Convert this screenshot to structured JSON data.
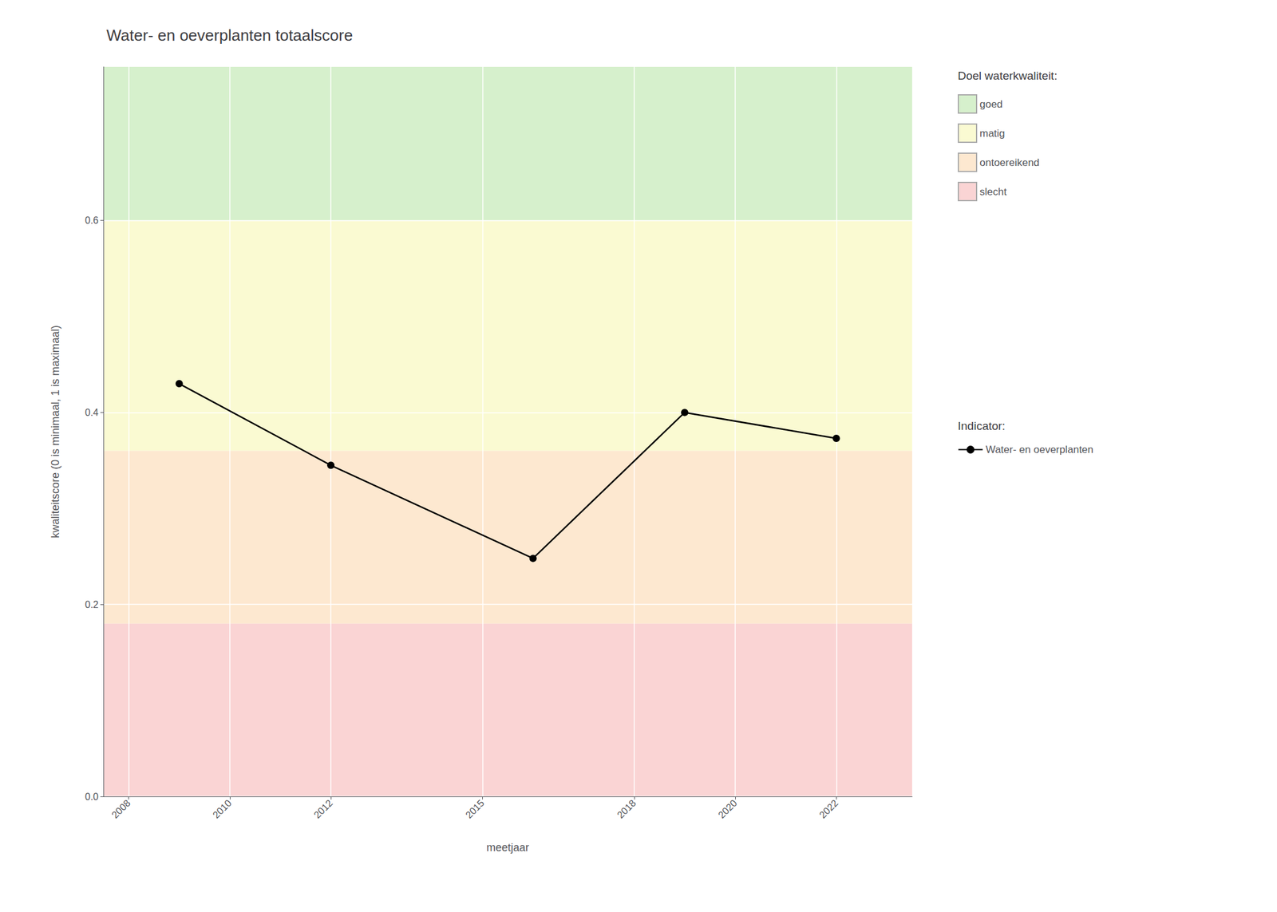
{
  "chart_data": {
    "type": "line",
    "title": "Water- en oeverplanten totaalscore",
    "xlabel": "meetjaar",
    "ylabel": "kwaliteitscore (0 is minimaal, 1 is maximaal)",
    "x": [
      2009,
      2012,
      2016,
      2019,
      2022
    ],
    "series": [
      {
        "name": "Water- en oeverplanten",
        "color": "#000000",
        "marker": "circle",
        "values": [
          0.43,
          0.345,
          0.248,
          0.4,
          0.373
        ]
      }
    ],
    "xlim": [
      2007.5,
      2023.5
    ],
    "ylim": [
      0.0,
      0.76
    ],
    "xticks": [
      2008,
      2010,
      2012,
      2015,
      2018,
      2020,
      2022
    ],
    "yticks": [
      {
        "value": 0.0,
        "label": "0.0"
      },
      0.2,
      0.4,
      0.6
    ],
    "grid": true,
    "legend": "right",
    "zones_title": "Doel waterkwaliteit:",
    "zones": [
      {
        "name": "goed",
        "color": "#d6f0cc",
        "range": [
          0.6,
          0.76
        ]
      },
      {
        "name": "matig",
        "color": "#fafad2",
        "range": [
          0.36,
          0.6
        ]
      },
      {
        "name": "ontoereikend",
        "color": "#fde8d0",
        "range": [
          0.18,
          0.36
        ]
      },
      {
        "name": "slecht",
        "color": "#fad4d4",
        "range": [
          0.0,
          0.18
        ]
      }
    ],
    "series_title": "Indicator:"
  }
}
